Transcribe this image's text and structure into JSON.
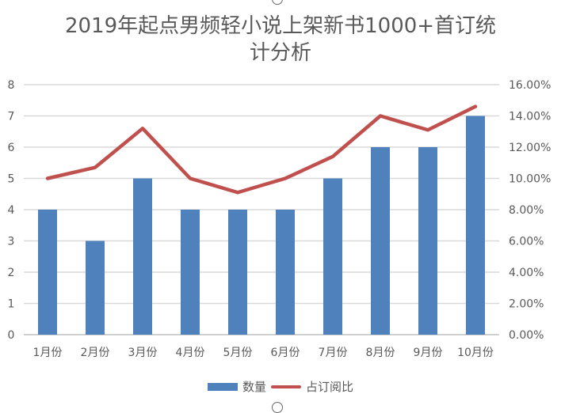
{
  "chart_data": {
    "type": "bar",
    "title": "2019年起点男频轻小说上架新书1000+首订统计分析",
    "title_lines": [
      "2019年起点男频轻小说上架新书1000+首订统",
      "计分析"
    ],
    "categories": [
      "1月份",
      "2月份",
      "3月份",
      "4月份",
      "5月份",
      "6月份",
      "7月份",
      "8月份",
      "9月份",
      "10月份"
    ],
    "series": [
      {
        "name": "数量",
        "type": "bar",
        "axis": "left",
        "color": "#4F81BD",
        "values": [
          4,
          3,
          5,
          4,
          4,
          4,
          5,
          6,
          6,
          7
        ]
      },
      {
        "name": "占订阅比",
        "type": "line",
        "axis": "right",
        "color": "#C0504D",
        "values": [
          10.0,
          10.7,
          13.2,
          10.0,
          9.1,
          10.0,
          11.4,
          14.0,
          13.1,
          14.6
        ],
        "unit": "%"
      }
    ],
    "ylim_left": [
      0,
      8
    ],
    "yticks_left": [
      "0",
      "1",
      "2",
      "3",
      "4",
      "5",
      "6",
      "7",
      "8"
    ],
    "ylim_right": [
      0,
      16
    ],
    "yticks_right": [
      "0.00%",
      "2.00%",
      "4.00%",
      "6.00%",
      "8.00%",
      "10.00%",
      "12.00%",
      "14.00%",
      "16.00%"
    ],
    "xlabel": "",
    "ylabel": "",
    "grid": true,
    "legend_position": "bottom"
  },
  "legend": {
    "bar_label": "数量",
    "line_label": "占订阅比"
  }
}
